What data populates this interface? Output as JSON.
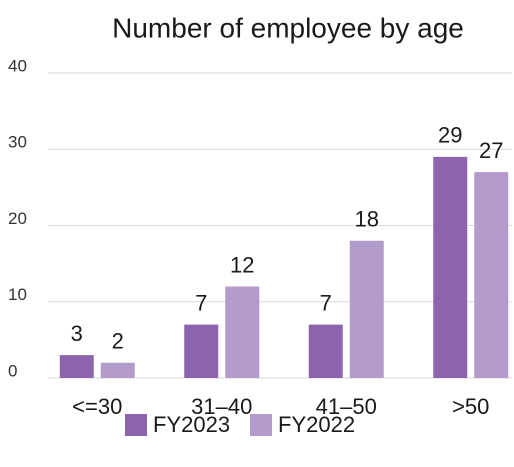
{
  "chart_data": {
    "type": "bar",
    "title": "Number of employee by age",
    "categories": [
      "<=30",
      "31–40",
      "41–50",
      ">50"
    ],
    "series": [
      {
        "name": "FY2023",
        "color": "#8b64ad",
        "values": [
          3,
          7,
          7,
          29
        ]
      },
      {
        "name": "FY2022",
        "color": "#b39ccc",
        "values": [
          2,
          12,
          18,
          27
        ]
      }
    ],
    "ylim": [
      0,
      40
    ],
    "yticks": [
      0,
      10,
      20,
      30,
      40
    ],
    "grid": true,
    "legend": "bottom"
  }
}
